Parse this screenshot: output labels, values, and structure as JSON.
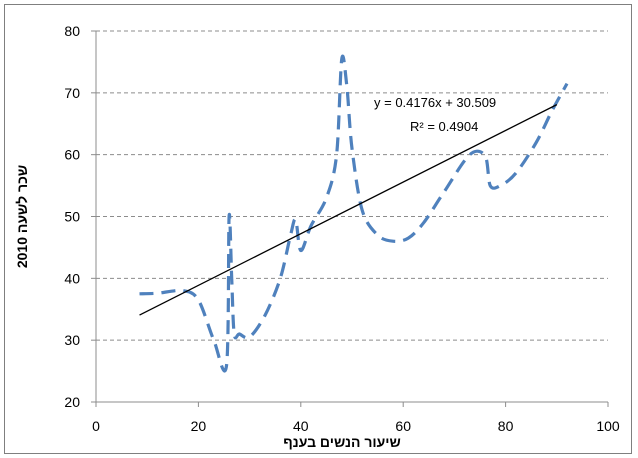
{
  "chart_data": {
    "type": "line",
    "xlabel": "שיעור הנשים בענף",
    "ylabel": "שכר לשעה 2010",
    "xlim": [
      0,
      100
    ],
    "ylim": [
      20,
      80
    ],
    "x_ticks": [
      0,
      20,
      40,
      60,
      80,
      100
    ],
    "y_ticks": [
      20,
      30,
      40,
      50,
      60,
      70,
      80
    ],
    "x_tick_labels": [
      "0",
      "20",
      "40",
      "60",
      "80",
      "100"
    ],
    "y_tick_labels": [
      "20",
      "30",
      "40",
      "50",
      "60",
      "70",
      "80"
    ],
    "grid": {
      "horizontal": true,
      "vertical": false
    },
    "series": [
      {
        "line_style": "dashed",
        "color": "#4f81bd",
        "x": [
          8.5,
          12,
          17,
          20,
          23,
          25.5,
          26,
          26.5,
          27,
          28,
          30,
          33,
          36,
          38,
          39,
          40,
          42,
          45,
          47,
          48,
          49,
          50,
          52,
          55,
          58,
          61,
          64,
          68,
          73,
          76,
          77,
          79,
          82,
          86,
          89,
          92
        ],
        "y": [
          37.5,
          37.6,
          38,
          36.5,
          30,
          26,
          50,
          40,
          31,
          31,
          30.5,
          34,
          40,
          47,
          49.5,
          44.5,
          48.5,
          53,
          60,
          75.5,
          71,
          61,
          51,
          47,
          46,
          46.5,
          49,
          54,
          60,
          59.8,
          55,
          55,
          57,
          62,
          67,
          71.5
        ]
      }
    ],
    "trendline": {
      "type": "linear",
      "slope": 0.4176,
      "intercept": 30.509,
      "x_range": [
        8.5,
        90
      ],
      "color": "#000000",
      "equation_label": "y = 0.4176x + 30.509",
      "r2_label": "R² = 0.4904"
    }
  }
}
